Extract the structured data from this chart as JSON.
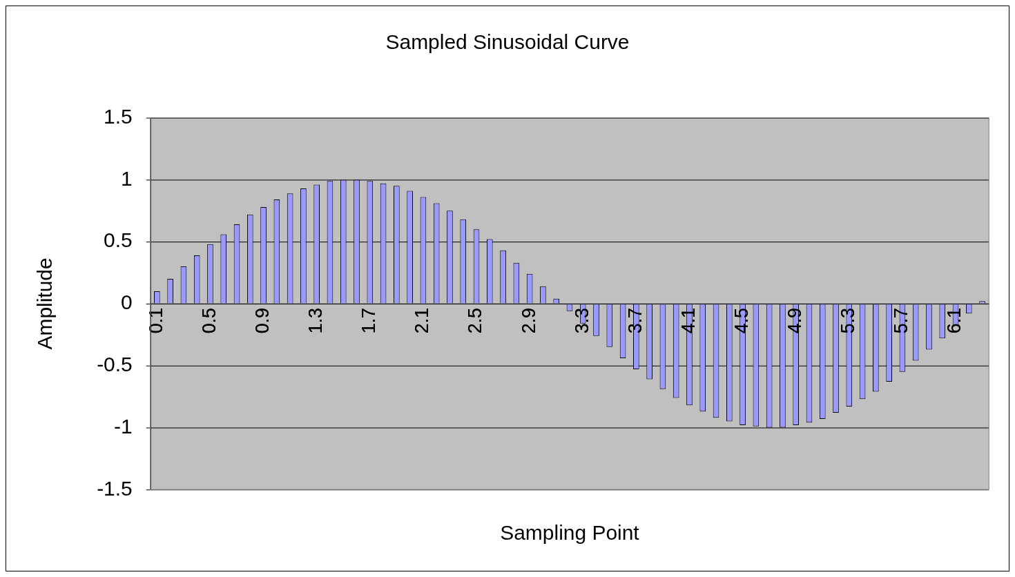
{
  "chart_data": {
    "type": "bar",
    "title": "Sampled Sinusoidal Curve",
    "xlabel": "Sampling Point",
    "ylabel": "Amplitude",
    "categories": [
      "0.1",
      null,
      null,
      null,
      "0.5",
      null,
      null,
      null,
      "0.9",
      null,
      null,
      null,
      "1.3",
      null,
      null,
      null,
      "1.7",
      null,
      null,
      null,
      "2.1",
      null,
      null,
      null,
      "2.5",
      null,
      null,
      null,
      "2.9",
      null,
      null,
      null,
      "3.3",
      null,
      null,
      null,
      "3.7",
      null,
      null,
      null,
      "4.1",
      null,
      null,
      null,
      "4.5",
      null,
      null,
      null,
      "4.9",
      null,
      null,
      null,
      "5.3",
      null,
      null,
      null,
      "5.7",
      null,
      null,
      null,
      "6.1",
      null,
      null
    ],
    "values": [
      0.1,
      0.2,
      0.3,
      0.39,
      0.48,
      0.56,
      0.64,
      0.72,
      0.78,
      0.84,
      0.89,
      0.93,
      0.96,
      0.99,
      1.0,
      1.0,
      0.99,
      0.97,
      0.95,
      0.91,
      0.86,
      0.81,
      0.75,
      0.68,
      0.6,
      0.52,
      0.43,
      0.33,
      0.24,
      0.14,
      0.04,
      -0.06,
      -0.16,
      -0.26,
      -0.35,
      -0.44,
      -0.53,
      -0.61,
      -0.69,
      -0.76,
      -0.82,
      -0.87,
      -0.92,
      -0.95,
      -0.98,
      -0.99,
      -1.0,
      -1.0,
      -0.98,
      -0.96,
      -0.93,
      -0.88,
      -0.83,
      -0.77,
      -0.71,
      -0.63,
      -0.55,
      -0.46,
      -0.37,
      -0.28,
      -0.18,
      -0.08,
      0.02
    ],
    "color": "#9999ff",
    "ylim": [
      -1.5,
      1.5
    ],
    "yticks": [
      -1.5,
      -1,
      -0.5,
      0,
      0.5,
      1,
      1.5
    ],
    "grid": "y"
  }
}
